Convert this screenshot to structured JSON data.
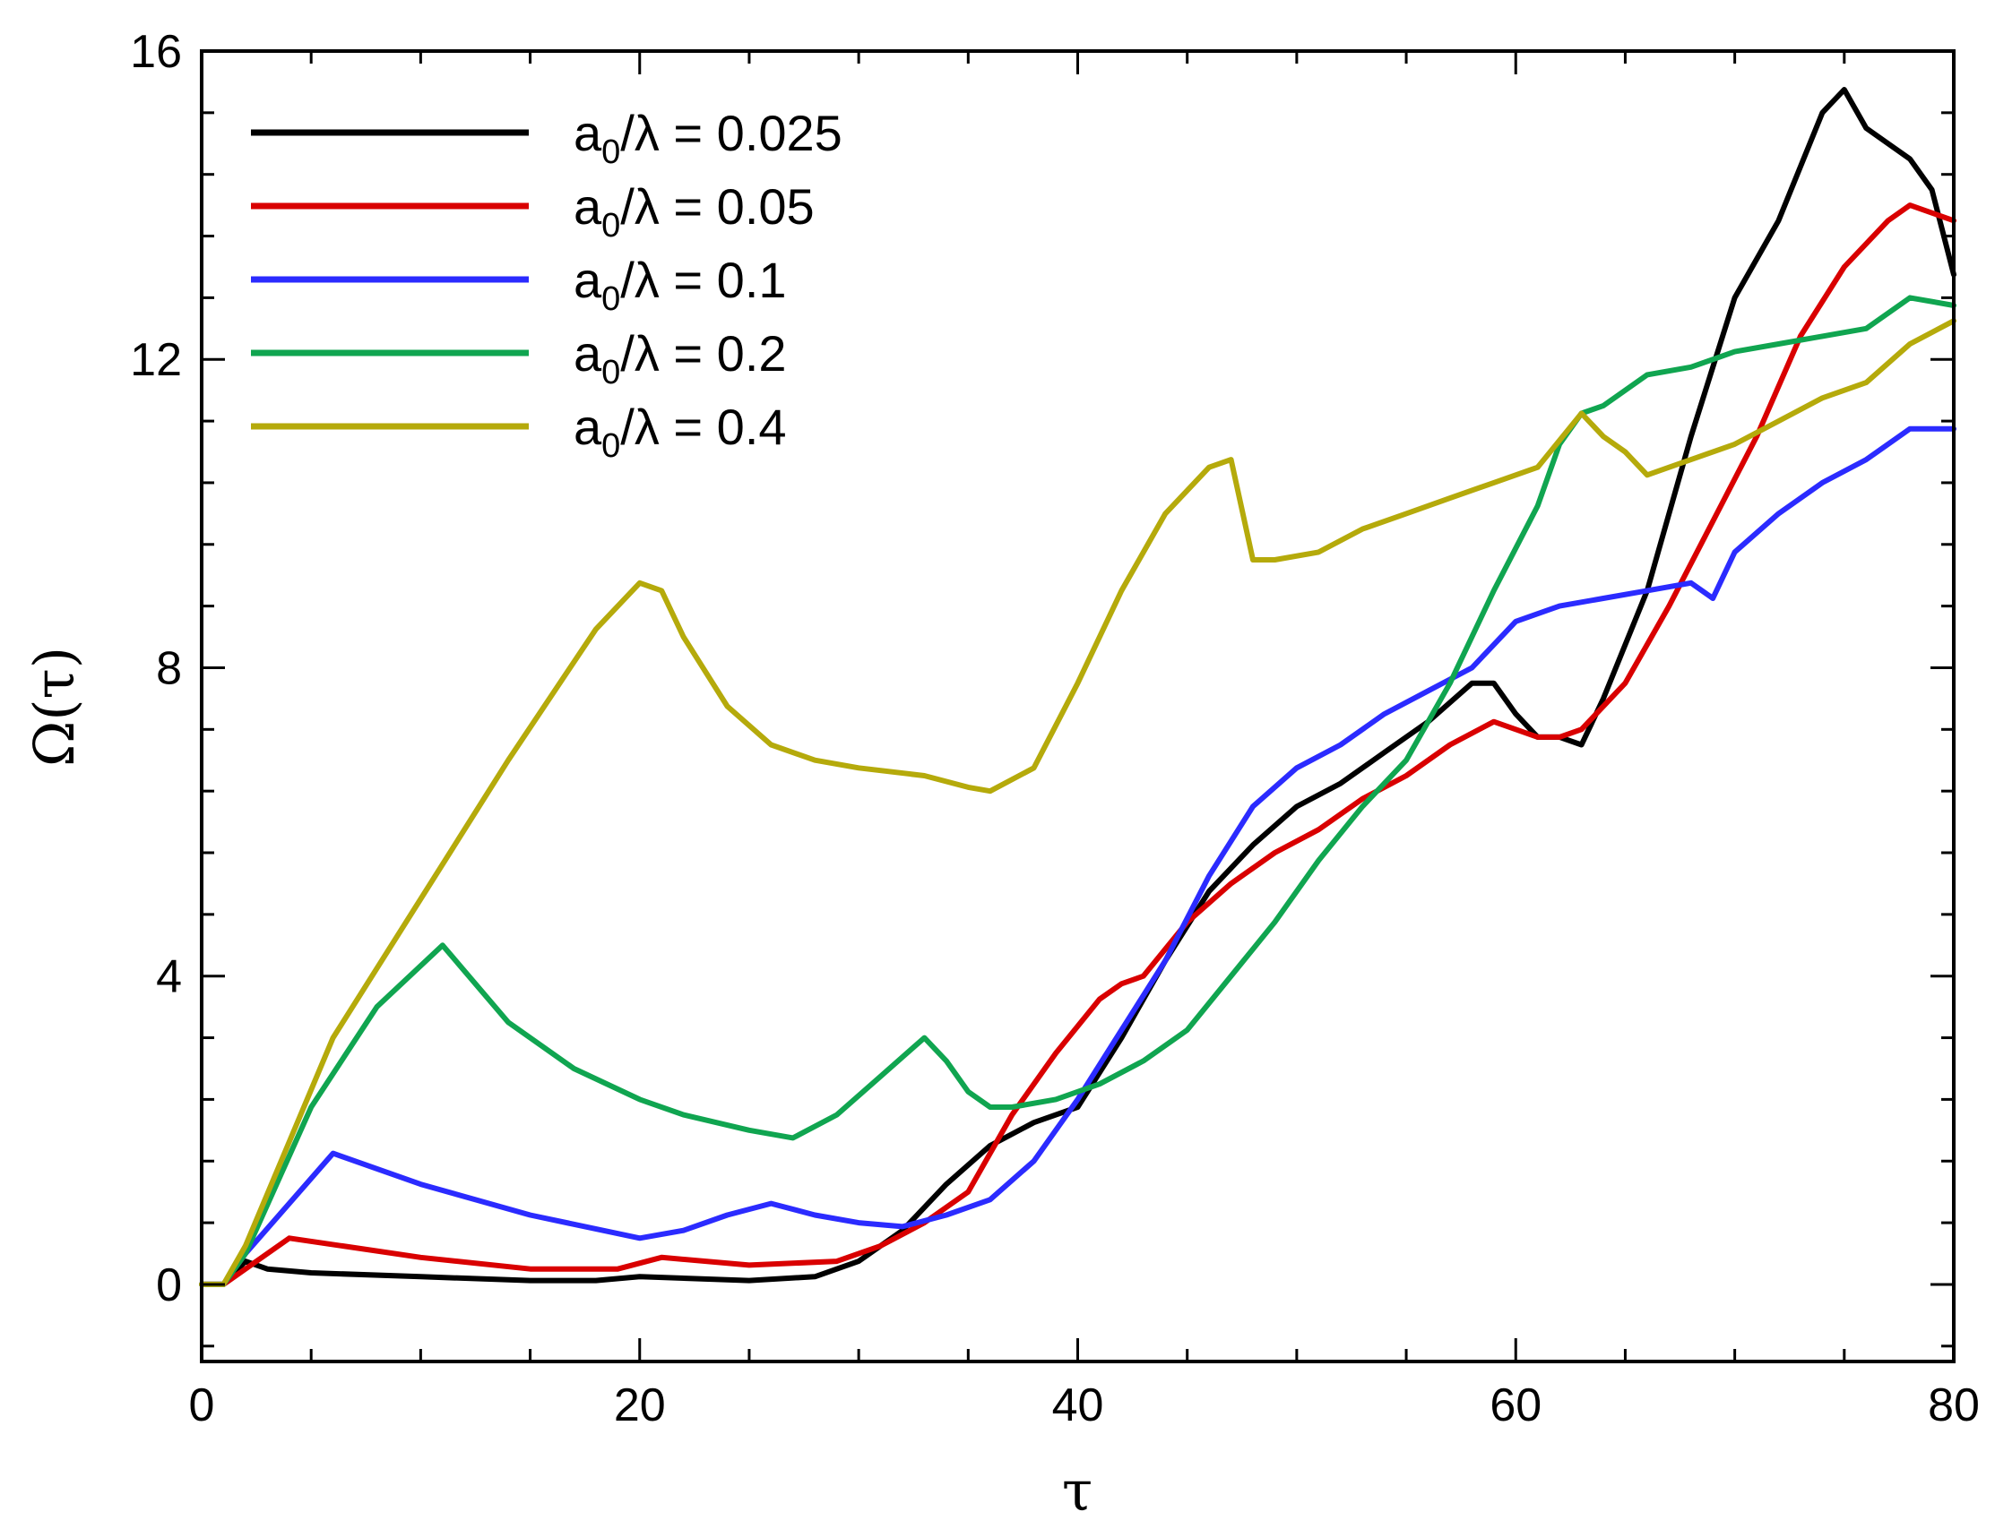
{
  "chart_data": {
    "type": "line",
    "title": "",
    "xlabel": "τ",
    "ylabel": "Ω(τ)",
    "xlim": [
      0,
      80
    ],
    "ylim": [
      -1,
      16
    ],
    "xticks": [
      0,
      20,
      40,
      60,
      80
    ],
    "yticks": [
      0,
      4,
      8,
      12,
      16
    ],
    "x_minor_step": 5,
    "y_minor_step": 0.8,
    "grid": false,
    "legend_position": "top-left",
    "series": [
      {
        "name": "a0/λ = 0.025",
        "legend_main": "a",
        "legend_sub": "0",
        "legend_rest": "/λ = 0.025",
        "color": "#000000",
        "x": [
          0,
          1,
          2,
          3,
          5,
          10,
          15,
          18,
          20,
          25,
          28,
          30,
          32,
          34,
          36,
          38,
          40,
          42,
          44,
          46,
          48,
          50,
          52,
          54,
          56,
          58,
          59,
          60,
          61,
          62,
          63,
          64,
          66,
          68,
          70,
          72,
          74,
          75,
          76,
          77,
          78,
          79,
          80
        ],
        "y": [
          0,
          0,
          0.3,
          0.2,
          0.15,
          0.1,
          0.05,
          0.05,
          0.1,
          0.05,
          0.1,
          0.3,
          0.7,
          1.3,
          1.8,
          2.1,
          2.3,
          3.2,
          4.2,
          5.1,
          5.7,
          6.2,
          6.5,
          6.9,
          7.3,
          7.8,
          7.8,
          7.4,
          7.1,
          7.1,
          7.0,
          7.6,
          9.0,
          11.0,
          12.8,
          13.8,
          15.2,
          15.5,
          15.0,
          14.8,
          14.6,
          14.2,
          13.1
        ]
      },
      {
        "name": "a0/λ = 0.05",
        "legend_main": "a",
        "legend_sub": "0",
        "legend_rest": "/λ = 0.05",
        "color": "#d90000",
        "x": [
          0,
          1,
          2,
          4,
          10,
          15,
          19,
          21,
          25,
          29,
          31,
          33,
          35,
          37,
          39,
          41,
          42,
          43,
          45,
          47,
          49,
          51,
          53,
          55,
          57,
          59,
          61,
          62,
          63,
          65,
          67,
          69,
          71,
          73,
          75,
          77,
          78,
          79,
          80
        ],
        "y": [
          0,
          0,
          0.2,
          0.6,
          0.35,
          0.2,
          0.2,
          0.35,
          0.25,
          0.3,
          0.5,
          0.8,
          1.2,
          2.2,
          3.0,
          3.7,
          3.9,
          4.0,
          4.7,
          5.2,
          5.6,
          5.9,
          6.3,
          6.6,
          7.0,
          7.3,
          7.1,
          7.1,
          7.2,
          7.8,
          8.8,
          9.9,
          11.0,
          12.3,
          13.2,
          13.8,
          14.0,
          13.9,
          13.8
        ]
      },
      {
        "name": "a0/λ = 0.1",
        "legend_main": "a",
        "legend_sub": "0",
        "legend_rest": "/λ = 0.1",
        "color": "#2b2bff",
        "x": [
          0,
          1,
          2,
          6,
          10,
          15,
          20,
          22,
          24,
          26,
          28,
          30,
          32,
          34,
          36,
          38,
          40,
          42,
          44,
          46,
          48,
          50,
          52,
          54,
          56,
          58,
          60,
          62,
          64,
          66,
          68,
          69,
          70,
          72,
          74,
          76,
          78,
          80
        ],
        "y": [
          0,
          0,
          0.4,
          1.7,
          1.3,
          0.9,
          0.6,
          0.7,
          0.9,
          1.05,
          0.9,
          0.8,
          0.75,
          0.9,
          1.1,
          1.6,
          2.4,
          3.3,
          4.2,
          5.3,
          6.2,
          6.7,
          7.0,
          7.4,
          7.7,
          8.0,
          8.6,
          8.8,
          8.9,
          9.0,
          9.1,
          8.9,
          9.5,
          10.0,
          10.4,
          10.7,
          11.1,
          11.1
        ]
      },
      {
        "name": "a0/λ = 0.2",
        "legend_main": "a",
        "legend_sub": "0",
        "legend_rest": "/λ = 0.2",
        "color": "#10a550",
        "x": [
          0,
          1,
          2,
          5,
          8,
          11,
          14,
          17,
          20,
          22,
          25,
          27,
          29,
          31,
          33,
          34,
          35,
          36,
          37,
          39,
          41,
          43,
          45,
          47,
          49,
          51,
          53,
          55,
          57,
          59,
          61,
          62,
          63,
          64,
          66,
          68,
          70,
          72,
          74,
          76,
          78,
          80
        ],
        "y": [
          0,
          0,
          0.4,
          2.3,
          3.6,
          4.4,
          3.4,
          2.8,
          2.4,
          2.2,
          2.0,
          1.9,
          2.2,
          2.7,
          3.2,
          2.9,
          2.5,
          2.3,
          2.3,
          2.4,
          2.6,
          2.9,
          3.3,
          4.0,
          4.7,
          5.5,
          6.2,
          6.8,
          7.8,
          9.0,
          10.1,
          10.9,
          11.3,
          11.4,
          11.8,
          11.9,
          12.1,
          12.2,
          12.3,
          12.4,
          12.8,
          12.7
        ]
      },
      {
        "name": "a0/λ = 0.4",
        "legend_main": "a",
        "legend_sub": "0",
        "legend_rest": "/λ = 0.4",
        "color": "#b5aa0b",
        "x": [
          0,
          1,
          2,
          6,
          10,
          14,
          18,
          20,
          21,
          22,
          24,
          26,
          28,
          30,
          33,
          35,
          36,
          38,
          40,
          42,
          44,
          46,
          47,
          48,
          49,
          51,
          53,
          55,
          57,
          59,
          61,
          63,
          64,
          65,
          66,
          67,
          68,
          70,
          72,
          74,
          76,
          78,
          80
        ],
        "y": [
          0,
          0,
          0.5,
          3.2,
          5.0,
          6.8,
          8.5,
          9.1,
          9.0,
          8.4,
          7.5,
          7.0,
          6.8,
          6.7,
          6.6,
          6.45,
          6.4,
          6.7,
          7.8,
          9.0,
          10.0,
          10.6,
          10.7,
          9.4,
          9.4,
          9.5,
          9.8,
          10.0,
          10.2,
          10.4,
          10.6,
          11.3,
          11.0,
          10.8,
          10.5,
          10.6,
          10.7,
          10.9,
          11.2,
          11.5,
          11.7,
          12.2,
          12.5
        ]
      }
    ]
  }
}
